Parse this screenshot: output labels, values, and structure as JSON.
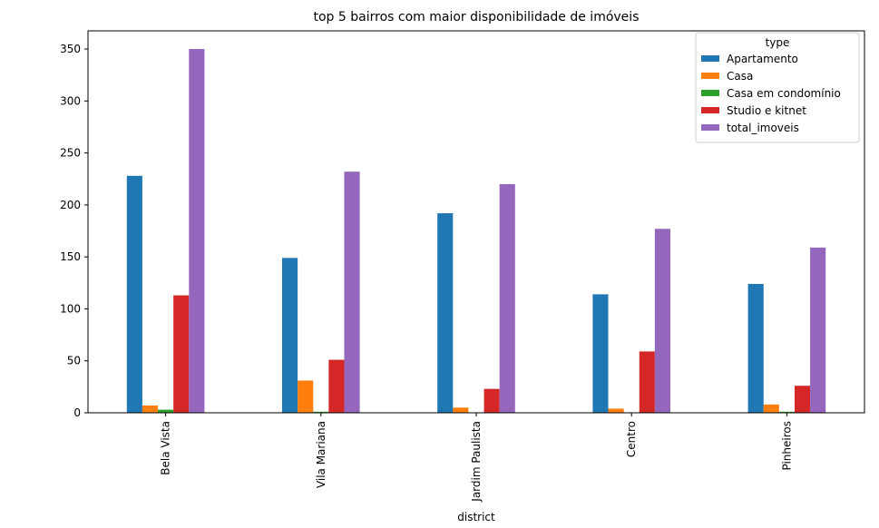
{
  "chart_data": {
    "type": "bar",
    "title": "top 5 bairros com maior disponibilidade de imóveis",
    "xlabel": "district",
    "ylabel": "",
    "categories": [
      "Bela Vista",
      "Vila Mariana",
      "Jardim Paulista",
      "Centro",
      "Pinheiros"
    ],
    "series": [
      {
        "name": "Apartamento",
        "color": "#1f77b4",
        "values": [
          228,
          149,
          192,
          114,
          124
        ]
      },
      {
        "name": "Casa",
        "color": "#ff7f0e",
        "values": [
          7,
          31,
          5,
          4,
          8
        ]
      },
      {
        "name": "Casa em condomínio",
        "color": "#2ca02c",
        "values": [
          3,
          1,
          0,
          0,
          1
        ]
      },
      {
        "name": "Studio e kitnet",
        "color": "#d62728",
        "values": [
          113,
          51,
          23,
          59,
          26
        ]
      },
      {
        "name": "total_imoveis",
        "color": "#9467bd",
        "values": [
          350,
          232,
          220,
          177,
          159
        ]
      }
    ],
    "ylim": [
      0,
      367.5
    ],
    "yticks": [
      0,
      50,
      100,
      150,
      200,
      250,
      300,
      350
    ],
    "legend": {
      "title": "type",
      "placement": "top-right"
    },
    "grid": false
  }
}
